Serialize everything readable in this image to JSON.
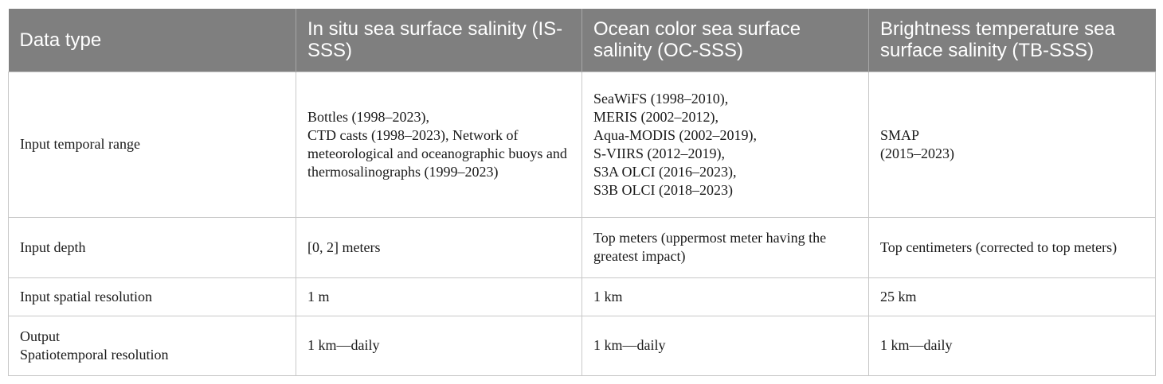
{
  "headers": [
    "Data type",
    "In situ sea surface salinity (IS-SSS)",
    "Ocean color sea surface salinity (OC-SSS)",
    "Brightness temperature sea surface salinity (TB-SSS)"
  ],
  "rows": [
    {
      "label": "Input temporal range",
      "is_sss": [
        "Bottles (1998–2023),",
        "CTD casts (1998–2023), Network of meteorological and oceanographic buoys and thermosalinographs (1999–2023)"
      ],
      "oc_sss": [
        "SeaWiFS (1998–2010),",
        "MERIS (2002–2012),",
        "Aqua-MODIS (2002–2019),",
        "S-VIIRS (2012–2019),",
        "S3A OLCI (2016–2023),",
        "S3B OLCI (2018–2023)"
      ],
      "tb_sss": [
        "SMAP",
        "(2015–2023)"
      ]
    },
    {
      "label": "Input depth",
      "is_sss": [
        "[0, 2] meters"
      ],
      "oc_sss": [
        "Top meters (uppermost meter having the greatest impact)"
      ],
      "tb_sss": [
        "Top centimeters (corrected to top meters)"
      ]
    },
    {
      "label": "Input spatial resolution",
      "is_sss": [
        "1 m"
      ],
      "oc_sss": [
        "1 km"
      ],
      "tb_sss": [
        "25 km"
      ]
    },
    {
      "label_lines": [
        "Output",
        "Spatiotemporal resolution"
      ],
      "is_sss": [
        "1 km—daily"
      ],
      "oc_sss": [
        "1 km—daily"
      ],
      "tb_sss": [
        "1 km—daily"
      ]
    }
  ]
}
